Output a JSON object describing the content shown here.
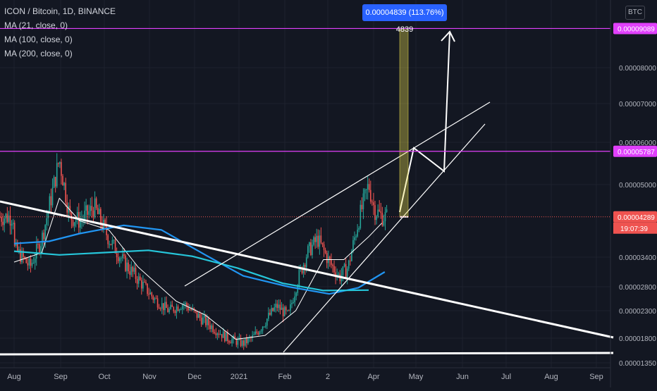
{
  "legend": {
    "symbol": "ICON / Bitcoin, 1D, BINANCE",
    "ma1": "MA (21, close, 0)",
    "ma2": "MA (100, close, 0)",
    "ma3": "MA (200, close, 0)"
  },
  "currency": "BTC",
  "measure": {
    "label": "0.00004839 (113.76%) 4839"
  },
  "colors": {
    "background": "#131722",
    "up": "#26a69a",
    "down": "#ef5350",
    "ma21": "#ffffff",
    "ma100": "#2196f3",
    "ma200": "#26c6da",
    "hline": "#e040fb",
    "price_tag": "#ef5350",
    "measure_fill": "#f2e14c",
    "axis_text": "#b2b5be",
    "grid": "#1e222d"
  },
  "chart_data": {
    "type": "candlestick",
    "title": "ICON / Bitcoin, 1D, BINANCE",
    "y_axis": {
      "ticks": [
        "0.00008000",
        "0.00007000",
        "0.00006000",
        "0.00005000",
        "0.00003400",
        "0.00002800",
        "0.00002300",
        "0.00001800",
        "0.00001350"
      ],
      "range": [
        1.34e-05,
        9.62e-05
      ]
    },
    "x_axis": {
      "ticks": [
        "Aug",
        "Sep",
        "Oct",
        "Nov",
        "Dec",
        "2021",
        "Feb",
        "2",
        "Apr",
        "May",
        "Jun",
        "Jul",
        "Aug",
        "Sep"
      ]
    },
    "price_labels": [
      {
        "value": "0.00009089",
        "kind": "hline"
      },
      {
        "value": "0.00005787",
        "kind": "hline"
      },
      {
        "value": "0.00004289",
        "kind": "last"
      }
    ],
    "countdown": "19:07:39",
    "series": [
      {
        "name": "MA (21, close, 0)",
        "points": [
          [
            "2020-08-01",
            3.3e-05
          ],
          [
            "2020-08-20",
            3.5e-05
          ],
          [
            "2020-09-01",
            4.7e-05
          ],
          [
            "2020-09-15",
            4.2e-05
          ],
          [
            "2020-10-05",
            4e-05
          ],
          [
            "2020-10-25",
            3.2e-05
          ],
          [
            "2020-11-20",
            2.5e-05
          ],
          [
            "2020-12-10",
            2.22e-05
          ],
          [
            "2020-12-31",
            1.78e-05
          ],
          [
            "2021-01-20",
            1.85e-05
          ],
          [
            "2021-02-10",
            2.3e-05
          ],
          [
            "2021-03-01",
            3.35e-05
          ],
          [
            "2021-03-15",
            3.35e-05
          ],
          [
            "2021-04-01",
            3.85e-05
          ],
          [
            "2021-04-10",
            4.15e-05
          ]
        ]
      },
      {
        "name": "MA (100, close, 0)",
        "points": [
          [
            "2020-08-01",
            3.7e-05
          ],
          [
            "2020-08-25",
            3.75e-05
          ],
          [
            "2020-09-15",
            3.92e-05
          ],
          [
            "2020-10-15",
            4.1e-05
          ],
          [
            "2020-11-10",
            4e-05
          ],
          [
            "2020-12-10",
            3.45e-05
          ],
          [
            "2021-01-05",
            3.02e-05
          ],
          [
            "2021-02-05",
            2.8e-05
          ],
          [
            "2021-03-05",
            2.65e-05
          ],
          [
            "2021-03-25",
            2.78e-05
          ],
          [
            "2021-04-12",
            3.1e-05
          ]
        ]
      },
      {
        "name": "MA (200, close, 0)",
        "points": [
          [
            "2020-08-01",
            3.53e-05
          ],
          [
            "2020-09-01",
            3.45e-05
          ],
          [
            "2020-10-01",
            3.5e-05
          ],
          [
            "2020-11-01",
            3.55e-05
          ],
          [
            "2020-12-01",
            3.42e-05
          ],
          [
            "2021-01-01",
            3.18e-05
          ],
          [
            "2021-02-01",
            2.87e-05
          ],
          [
            "2021-03-01",
            2.72e-05
          ],
          [
            "2021-04-01",
            2.73e-05
          ]
        ]
      }
    ],
    "candles_summary": [
      [
        "2020-08-01",
        3.6e-05
      ],
      [
        "2020-08-12",
        3.2e-05
      ],
      [
        "2020-08-20",
        3.8e-05
      ],
      [
        "2020-08-27",
        4.8e-05
      ],
      [
        "2020-09-01",
        5.6e-05
      ],
      [
        "2020-09-08",
        4.3e-05
      ],
      [
        "2020-09-15",
        4.2e-05
      ],
      [
        "2020-09-25",
        4.5e-05
      ],
      [
        "2020-10-05",
        3.8e-05
      ],
      [
        "2020-10-15",
        3.3e-05
      ],
      [
        "2020-10-25",
        2.95e-05
      ],
      [
        "2020-11-05",
        2.55e-05
      ],
      [
        "2020-11-15",
        2.3e-05
      ],
      [
        "2020-11-25",
        2.45e-05
      ],
      [
        "2020-12-05",
        2.2e-05
      ],
      [
        "2020-12-15",
        2e-05
      ],
      [
        "2020-12-25",
        1.8e-05
      ],
      [
        "2021-01-05",
        1.7e-05
      ],
      [
        "2021-01-12",
        1.82e-05
      ],
      [
        "2021-01-20",
        2.1e-05
      ],
      [
        "2021-01-28",
        2.4e-05
      ],
      [
        "2021-02-05",
        2.2e-05
      ],
      [
        "2021-02-12",
        3e-05
      ],
      [
        "2021-02-18",
        3.5e-05
      ],
      [
        "2021-02-25",
        3.8e-05
      ],
      [
        "2021-03-05",
        3.3e-05
      ],
      [
        "2021-03-12",
        3e-05
      ],
      [
        "2021-03-18",
        3.2e-05
      ],
      [
        "2021-03-25",
        4.2e-05
      ],
      [
        "2021-04-01",
        5e-05
      ],
      [
        "2021-04-05",
        4.45e-05
      ],
      [
        "2021-04-10",
        4.3e-05
      ],
      [
        "2021-04-14",
        4.29e-05
      ]
    ]
  }
}
